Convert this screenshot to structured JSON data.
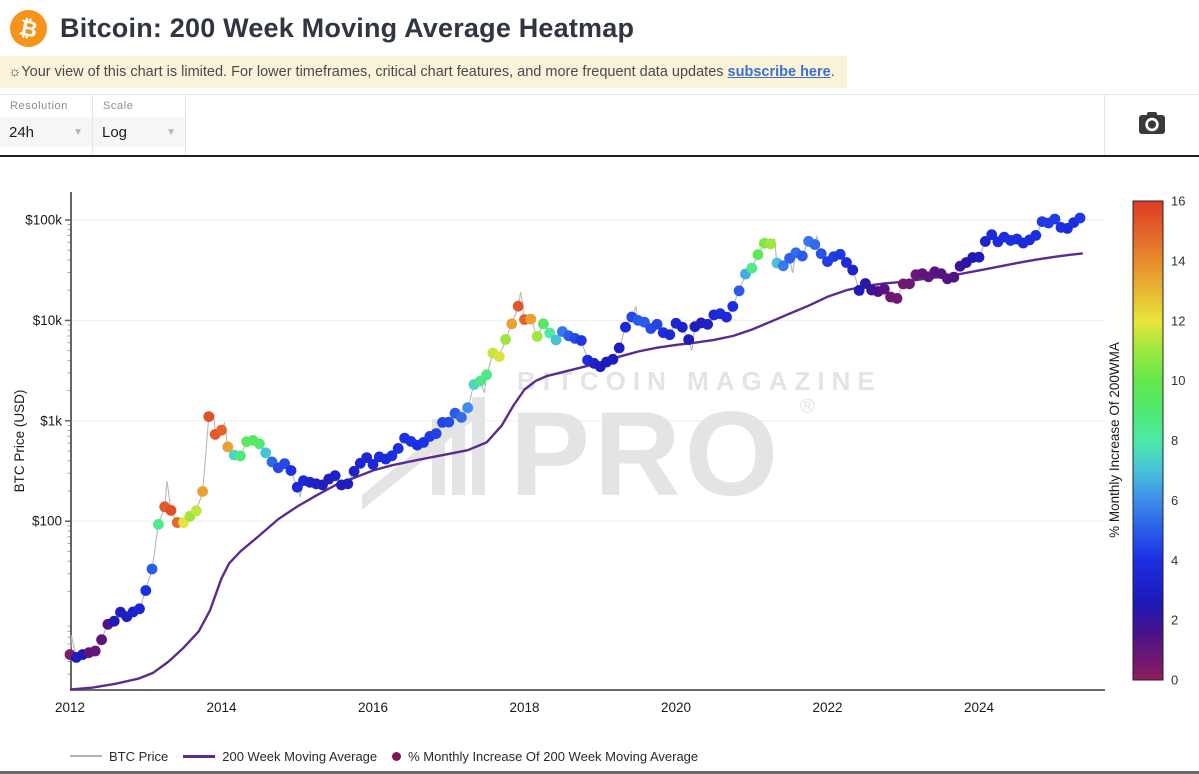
{
  "header": {
    "logo_symbol": "₿",
    "title": "Bitcoin: 200 Week Moving Average Heatmap"
  },
  "banner": {
    "icon": "☼",
    "text": "Your view of this chart is limited. For lower timeframes, critical chart features, and more frequent data updates ",
    "link_text": "subscribe here",
    "suffix": "."
  },
  "toolbar": {
    "controls": [
      {
        "label": "Resolution",
        "value": "24h"
      },
      {
        "label": "Scale",
        "value": "Log"
      }
    ],
    "camera_icon": "camera"
  },
  "watermark": {
    "line1": "BITCOIN MAGAZINE",
    "line2": "PRO",
    "reg": "®"
  },
  "chart_data": {
    "type": "scatter",
    "title": "Bitcoin: 200 Week Moving Average Heatmap",
    "ylabel": "BTC Price (USD)",
    "y_scale": "log",
    "grid": "horizontal-only",
    "x_ticks": [
      2012,
      2014,
      2016,
      2018,
      2020,
      2022,
      2024
    ],
    "x_range": [
      2011.98,
      2025.66
    ],
    "y_ticks": [
      {
        "v": 100000,
        "label": "$100k"
      },
      {
        "v": 10000,
        "label": "$10k"
      },
      {
        "v": 1000,
        "label": "$1k"
      },
      {
        "v": 100,
        "label": "$100"
      }
    ],
    "colorbar": {
      "label": "% Monthly Increase Of 200WMA",
      "range": [
        0,
        16
      ],
      "ticks": [
        0,
        2,
        4,
        6,
        8,
        10,
        12,
        14,
        16
      ],
      "stops": [
        [
          0,
          "#8e1e5e"
        ],
        [
          1.5,
          "#4b1288"
        ],
        [
          2.5,
          "#1f18b4"
        ],
        [
          4,
          "#1c2ee2"
        ],
        [
          5,
          "#2b5ce9"
        ],
        [
          6,
          "#3f8ceb"
        ],
        [
          7,
          "#47c2d8"
        ],
        [
          8,
          "#4fe9a6"
        ],
        [
          9,
          "#4ee96e"
        ],
        [
          10,
          "#63e84b"
        ],
        [
          11,
          "#9ce83f"
        ],
        [
          12,
          "#e8e43c"
        ],
        [
          14,
          "#e98a2d"
        ],
        [
          16,
          "#dc3b26"
        ]
      ]
    },
    "series_meta": [
      {
        "name": "BTC Price",
        "type": "line",
        "color": "#b8b8b8"
      },
      {
        "name": "200 Week Moving Average",
        "type": "line",
        "color": "#5b2b8f"
      },
      {
        "name": "% Monthly Increase Of 200 Week Moving Average",
        "type": "scatter-heat",
        "color_by": "pct_monthly_increase_200wma"
      }
    ],
    "monthly": [
      [
        2012.0,
        4.7,
        0.3
      ],
      [
        2012.083,
        4.4,
        2.8
      ],
      [
        2012.167,
        4.7,
        2.6
      ],
      [
        2012.25,
        4.9,
        1.1
      ],
      [
        2012.333,
        5.1,
        0.9
      ],
      [
        2012.417,
        6.6,
        1.1
      ],
      [
        2012.5,
        9.4,
        1.4
      ],
      [
        2012.583,
        10.1,
        2.6
      ],
      [
        2012.667,
        12.4,
        3.0
      ],
      [
        2012.75,
        11.2,
        3.0
      ],
      [
        2012.833,
        12.5,
        3.2
      ],
      [
        2012.917,
        13.4,
        3.4
      ],
      [
        2013.0,
        20.4,
        4.0
      ],
      [
        2013.083,
        33.4,
        5.0
      ],
      [
        2013.167,
        93,
        8.5
      ],
      [
        2013.25,
        139,
        15.2
      ],
      [
        2013.333,
        128,
        15.5
      ],
      [
        2013.417,
        97,
        14.8
      ],
      [
        2013.5,
        97,
        12.0
      ],
      [
        2013.583,
        112,
        11.0
      ],
      [
        2013.667,
        127,
        11.5
      ],
      [
        2013.75,
        198,
        13.5
      ],
      [
        2013.833,
        1100,
        15.5
      ],
      [
        2013.917,
        732,
        15.2
      ],
      [
        2014.0,
        806,
        15.0
      ],
      [
        2014.083,
        550,
        13.5
      ],
      [
        2014.167,
        455,
        7.5
      ],
      [
        2014.25,
        447,
        8.8
      ],
      [
        2014.333,
        620,
        9.5
      ],
      [
        2014.417,
        640,
        9.5
      ],
      [
        2014.5,
        590,
        9.0
      ],
      [
        2014.583,
        480,
        7.0
      ],
      [
        2014.667,
        390,
        5.2
      ],
      [
        2014.75,
        340,
        4.6
      ],
      [
        2014.833,
        375,
        4.6
      ],
      [
        2014.917,
        320,
        4.1
      ],
      [
        2015.0,
        218,
        3.6
      ],
      [
        2015.083,
        254,
        3.6
      ],
      [
        2015.167,
        244,
        3.3
      ],
      [
        2015.25,
        236,
        3.1
      ],
      [
        2015.333,
        230,
        3.0
      ],
      [
        2015.417,
        263,
        3.0
      ],
      [
        2015.5,
        284,
        3.2
      ],
      [
        2015.583,
        230,
        3.0
      ],
      [
        2015.667,
        236,
        3.0
      ],
      [
        2015.75,
        314,
        3.2
      ],
      [
        2015.833,
        377,
        3.4
      ],
      [
        2015.917,
        430,
        3.5
      ],
      [
        2016.0,
        368,
        3.5
      ],
      [
        2016.083,
        437,
        3.7
      ],
      [
        2016.167,
        416,
        3.8
      ],
      [
        2016.25,
        448,
        4.0
      ],
      [
        2016.333,
        531,
        4.0
      ],
      [
        2016.417,
        673,
        4.1
      ],
      [
        2016.5,
        624,
        4.1
      ],
      [
        2016.583,
        573,
        4.0
      ],
      [
        2016.667,
        610,
        4.1
      ],
      [
        2016.75,
        700,
        4.2
      ],
      [
        2016.833,
        745,
        4.4
      ],
      [
        2016.917,
        963,
        4.5
      ],
      [
        2017.0,
        970,
        4.6
      ],
      [
        2017.083,
        1190,
        5.0
      ],
      [
        2017.167,
        1080,
        5.3
      ],
      [
        2017.25,
        1350,
        6.0
      ],
      [
        2017.333,
        2300,
        7.5
      ],
      [
        2017.417,
        2480,
        8.5
      ],
      [
        2017.5,
        2870,
        8.6
      ],
      [
        2017.583,
        4730,
        11.5
      ],
      [
        2017.667,
        4360,
        11.8
      ],
      [
        2017.75,
        6450,
        11.0
      ],
      [
        2017.833,
        9250,
        13.5
      ],
      [
        2017.917,
        13850,
        15.3
      ],
      [
        2018.0,
        10200,
        15.0
      ],
      [
        2018.083,
        10300,
        13.5
      ],
      [
        2018.167,
        6930,
        11.0
      ],
      [
        2018.25,
        9240,
        9.5
      ],
      [
        2018.333,
        7500,
        8.0
      ],
      [
        2018.417,
        6400,
        7.0
      ],
      [
        2018.5,
        7750,
        5.6
      ],
      [
        2018.583,
        7020,
        5.0
      ],
      [
        2018.667,
        6620,
        4.6
      ],
      [
        2018.75,
        6300,
        4.2
      ],
      [
        2018.833,
        4020,
        3.7
      ],
      [
        2018.917,
        3740,
        3.2
      ],
      [
        2019.0,
        3460,
        2.8
      ],
      [
        2019.083,
        3850,
        2.8
      ],
      [
        2019.167,
        4100,
        2.8
      ],
      [
        2019.25,
        5320,
        3.0
      ],
      [
        2019.333,
        8560,
        3.6
      ],
      [
        2019.417,
        10800,
        4.6
      ],
      [
        2019.5,
        10000,
        5.0
      ],
      [
        2019.583,
        9600,
        5.0
      ],
      [
        2019.667,
        8300,
        4.6
      ],
      [
        2019.75,
        9150,
        4.5
      ],
      [
        2019.833,
        7550,
        4.0
      ],
      [
        2019.917,
        7200,
        3.6
      ],
      [
        2020.0,
        9350,
        3.5
      ],
      [
        2020.083,
        8550,
        3.2
      ],
      [
        2020.167,
        6440,
        2.8
      ],
      [
        2020.25,
        8650,
        3.0
      ],
      [
        2020.333,
        9450,
        3.0
      ],
      [
        2020.417,
        9140,
        3.1
      ],
      [
        2020.5,
        11350,
        3.5
      ],
      [
        2020.583,
        11650,
        3.8
      ],
      [
        2020.667,
        10780,
        3.6
      ],
      [
        2020.75,
        13800,
        4.0
      ],
      [
        2020.833,
        19700,
        5.0
      ],
      [
        2020.917,
        29000,
        6.6
      ],
      [
        2021.0,
        33100,
        8.5
      ],
      [
        2021.083,
        45200,
        9.6
      ],
      [
        2021.167,
        58800,
        10.5
      ],
      [
        2021.25,
        57800,
        11.0
      ],
      [
        2021.333,
        37300,
        7.0
      ],
      [
        2021.417,
        35000,
        5.6
      ],
      [
        2021.5,
        41500,
        5.1
      ],
      [
        2021.583,
        47100,
        5.3
      ],
      [
        2021.667,
        43800,
        5.0
      ],
      [
        2021.75,
        61300,
        5.6
      ],
      [
        2021.833,
        57000,
        5.3
      ],
      [
        2021.917,
        46200,
        4.8
      ],
      [
        2022.0,
        38500,
        4.3
      ],
      [
        2022.083,
        43200,
        4.3
      ],
      [
        2022.167,
        45500,
        4.2
      ],
      [
        2022.25,
        37700,
        3.8
      ],
      [
        2022.333,
        31800,
        3.2
      ],
      [
        2022.417,
        19900,
        2.8
      ],
      [
        2022.5,
        23300,
        2.2
      ],
      [
        2022.583,
        20050,
        1.8
      ],
      [
        2022.667,
        19400,
        1.5
      ],
      [
        2022.75,
        20500,
        1.2
      ],
      [
        2022.833,
        17100,
        0.8
      ],
      [
        2022.917,
        16550,
        0.7
      ],
      [
        2023.0,
        23100,
        0.7
      ],
      [
        2023.083,
        23150,
        0.7
      ],
      [
        2023.167,
        28500,
        0.8
      ],
      [
        2023.25,
        29250,
        1.0
      ],
      [
        2023.333,
        27200,
        1.0
      ],
      [
        2023.417,
        30480,
        1.2
      ],
      [
        2023.5,
        29230,
        1.3
      ],
      [
        2023.583,
        25940,
        1.3
      ],
      [
        2023.667,
        26960,
        1.4
      ],
      [
        2023.75,
        34650,
        1.8
      ],
      [
        2023.833,
        37720,
        2.2
      ],
      [
        2023.917,
        42280,
        2.5
      ],
      [
        2024.0,
        42580,
        2.8
      ],
      [
        2024.083,
        61200,
        3.3
      ],
      [
        2024.167,
        71300,
        3.8
      ],
      [
        2024.25,
        60640,
        3.8
      ],
      [
        2024.333,
        67500,
        4.0
      ],
      [
        2024.417,
        62680,
        4.0
      ],
      [
        2024.5,
        64620,
        4.0
      ],
      [
        2024.583,
        58970,
        3.8
      ],
      [
        2024.667,
        63330,
        3.8
      ],
      [
        2024.75,
        70220,
        4.0
      ],
      [
        2024.833,
        96450,
        4.3
      ],
      [
        2024.917,
        93430,
        4.3
      ],
      [
        2025.0,
        102400,
        4.3
      ],
      [
        2025.083,
        84350,
        4.0
      ],
      [
        2025.167,
        82550,
        3.8
      ],
      [
        2025.25,
        94200,
        4.0
      ],
      [
        2025.333,
        104600,
        4.2
      ]
    ],
    "price_spikes": [
      [
        2012.02,
        7.3
      ],
      [
        2013.28,
        250
      ],
      [
        2013.9,
        1150
      ],
      [
        2014.04,
        950
      ],
      [
        2015.04,
        175
      ],
      [
        2017.47,
        1900
      ],
      [
        2017.95,
        19200
      ],
      [
        2019.47,
        13700
      ],
      [
        2020.21,
        5000
      ],
      [
        2021.3,
        64500
      ],
      [
        2021.54,
        29800
      ],
      [
        2021.86,
        68500
      ],
      [
        2022.46,
        17800
      ],
      [
        2024.21,
        73500
      ],
      [
        2025.06,
        108500
      ],
      [
        2025.37,
        105500
      ]
    ],
    "wma": [
      [
        2012.0,
        2.1
      ],
      [
        2012.3,
        2.2
      ],
      [
        2012.6,
        2.4
      ],
      [
        2012.9,
        2.7
      ],
      [
        2013.1,
        3.1
      ],
      [
        2013.3,
        4.0
      ],
      [
        2013.5,
        5.5
      ],
      [
        2013.7,
        8
      ],
      [
        2013.85,
        13
      ],
      [
        2014.0,
        27
      ],
      [
        2014.1,
        38
      ],
      [
        2014.25,
        50
      ],
      [
        2014.5,
        72
      ],
      [
        2014.75,
        105
      ],
      [
        2015.0,
        140
      ],
      [
        2015.25,
        180
      ],
      [
        2015.5,
        228
      ],
      [
        2015.75,
        270
      ],
      [
        2016.0,
        320
      ],
      [
        2016.25,
        360
      ],
      [
        2016.5,
        395
      ],
      [
        2016.75,
        430
      ],
      [
        2017.0,
        468
      ],
      [
        2017.25,
        510
      ],
      [
        2017.5,
        610
      ],
      [
        2017.7,
        900
      ],
      [
        2017.85,
        1400
      ],
      [
        2018.0,
        2050
      ],
      [
        2018.15,
        2500
      ],
      [
        2018.3,
        2800
      ],
      [
        2018.5,
        3050
      ],
      [
        2018.75,
        3400
      ],
      [
        2019.0,
        3800
      ],
      [
        2019.25,
        4350
      ],
      [
        2019.5,
        4900
      ],
      [
        2019.75,
        5350
      ],
      [
        2020.0,
        5700
      ],
      [
        2020.25,
        6000
      ],
      [
        2020.5,
        6400
      ],
      [
        2020.75,
        7000
      ],
      [
        2021.0,
        8100
      ],
      [
        2021.25,
        9700
      ],
      [
        2021.5,
        11700
      ],
      [
        2021.75,
        14000
      ],
      [
        2022.0,
        17200
      ],
      [
        2022.25,
        20000
      ],
      [
        2022.5,
        22000
      ],
      [
        2022.75,
        23300
      ],
      [
        2023.0,
        24300
      ],
      [
        2023.25,
        25700
      ],
      [
        2023.5,
        27200
      ],
      [
        2023.75,
        29000
      ],
      [
        2024.0,
        31500
      ],
      [
        2024.25,
        34200
      ],
      [
        2024.5,
        37200
      ],
      [
        2024.75,
        40200
      ],
      [
        2025.0,
        43000
      ],
      [
        2025.2,
        45000
      ],
      [
        2025.37,
        46500
      ]
    ]
  },
  "legend": {
    "items": [
      {
        "label": "BTC Price",
        "swatch": "line",
        "color": "#b3b3b3"
      },
      {
        "label": "200 Week Moving Average",
        "swatch": "line",
        "color": "#5b2b8f"
      },
      {
        "label": "% Monthly Increase Of 200 Week Moving Average",
        "swatch": "dot",
        "color": "#7c1659"
      }
    ]
  }
}
